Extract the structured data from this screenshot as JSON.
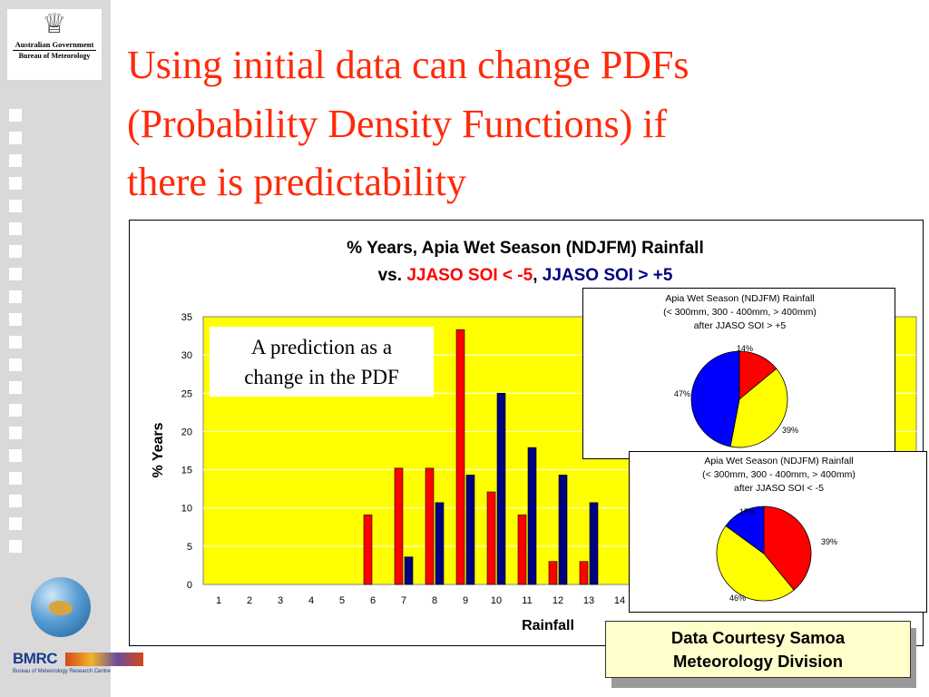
{
  "slide": {
    "title": "Using initial data can change PDFs\n(Probability Density Functions) if\nthere is predictability",
    "logo": {
      "government": "Australian Government",
      "bureau": "Bureau of Meteorology"
    },
    "bmrc": {
      "name": "BMRC",
      "subtitle": "Bureau of Meteorology Research Centre"
    },
    "callout": "A prediction as a\nchange in the PDF",
    "courtesy": "Data Courtesy Samoa\nMeteorology Division",
    "colors": {
      "title": "#ff2a0a",
      "plot_background": "#ffff00",
      "series_red": "#ff0000",
      "series_blue": "#000080",
      "courtesy_background": "#ffffcc"
    }
  },
  "chart_data": [
    {
      "type": "bar",
      "title_line1": "% Years, Apia Wet Season (NDJFM) Rainfall",
      "title_prefix": "vs. ",
      "title_sep": ", ",
      "xlabel": "Rainfall",
      "ylabel": "% Years",
      "ylim": [
        0,
        35
      ],
      "yticks": [
        0,
        5,
        10,
        15,
        20,
        25,
        30,
        35
      ],
      "categories": [
        "1",
        "2",
        "3",
        "4",
        "5",
        "6",
        "7",
        "8",
        "9",
        "10",
        "11",
        "12",
        "13",
        "14"
      ],
      "series": [
        {
          "name": "JJASO SOI < -5",
          "color": "#ff0000",
          "values": [
            0,
            0,
            0,
            0,
            0,
            9.1,
            15.2,
            15.2,
            33.3,
            12.1,
            9.1,
            3.0,
            3.0,
            null
          ]
        },
        {
          "name": "JJASO SOI > +5",
          "color": "#000080",
          "values": [
            0,
            0,
            0,
            0,
            0,
            0,
            3.6,
            10.7,
            14.3,
            25.0,
            17.9,
            14.3,
            10.7,
            null
          ]
        }
      ],
      "grid": "horizontal",
      "plot_background": "#ffff00"
    },
    {
      "type": "pie",
      "title": "Apia Wet Season (NDJFM) Rainfall\n(< 300mm, 300 - 400mm, > 400mm)\nafter JJASO SOI > +5",
      "slices": [
        {
          "label": "14%",
          "value": 14,
          "color": "#ff0000"
        },
        {
          "label": "39%",
          "value": 39,
          "color": "#ffff00"
        },
        {
          "label": "47%",
          "value": 47,
          "color": "#0000ff"
        }
      ]
    },
    {
      "type": "pie",
      "title": "Apia Wet Season (NDJFM) Rainfall\n(< 300mm, 300 - 400mm, > 400mm)\nafter JJASO SOI < -5",
      "slices": [
        {
          "label": "39%",
          "value": 39,
          "color": "#ff0000"
        },
        {
          "label": "46%",
          "value": 46,
          "color": "#ffff00"
        },
        {
          "label": "15%",
          "value": 15,
          "color": "#0000ff"
        }
      ]
    }
  ]
}
